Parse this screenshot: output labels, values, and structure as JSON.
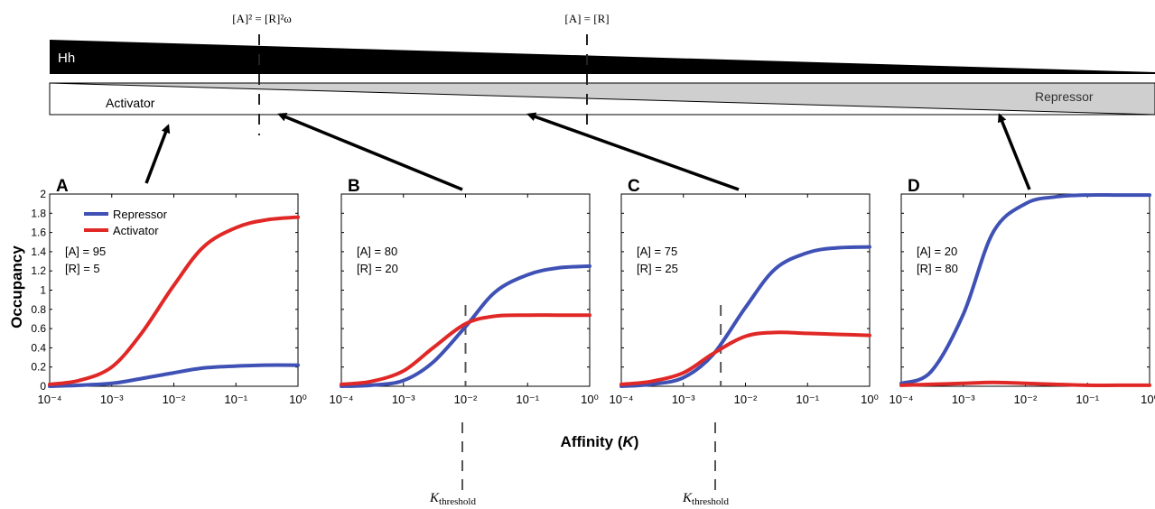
{
  "figure": {
    "top_labels": {
      "eq_left": "[A]² = [R]²ω",
      "eq_right": "[A] = [R]"
    },
    "gradients": {
      "hh_label": "Hh",
      "activator_label": "Activator",
      "repressor_label": "Repressor"
    },
    "y_axis_label": "Occupancy",
    "x_axis_label_text": "Affinity (",
    "x_axis_label_var": "K",
    "x_axis_label_close": ")",
    "threshold": {
      "main": "K",
      "sub": "threshold"
    },
    "legend": {
      "repressor": "Repressor",
      "activator": "Activator"
    },
    "colors": {
      "repressor": "#3f51b5",
      "activator": "#e02826",
      "hh_fill": "#000000",
      "repressor_gradient_fill": "#cfcfcf"
    }
  },
  "chart_data": [
    {
      "type": "line",
      "panel": "A",
      "x_scale": "log",
      "xlim": [
        0.0001,
        1
      ],
      "ylim": [
        0,
        2
      ],
      "x_ticks": [
        "10⁻⁴",
        "10⁻³",
        "10⁻²",
        "10⁻¹",
        "10⁰"
      ],
      "y_ticks": [
        "0",
        "0.2",
        "0.4",
        "0.6",
        "0.8",
        "1",
        "1.2",
        "1.4",
        "1.6",
        "1.8",
        "2"
      ],
      "annotation": [
        "[A] = 95",
        "[R] = 5"
      ],
      "x": [
        0.0001,
        0.0003,
        0.001,
        0.003,
        0.01,
        0.03,
        0.1,
        0.3,
        1
      ],
      "series": [
        {
          "name": "Repressor",
          "values": [
            0.0,
            0.01,
            0.03,
            0.08,
            0.14,
            0.19,
            0.21,
            0.22,
            0.22
          ]
        },
        {
          "name": "Activator",
          "values": [
            0.02,
            0.06,
            0.2,
            0.55,
            1.05,
            1.45,
            1.65,
            1.73,
            1.76
          ]
        }
      ]
    },
    {
      "type": "line",
      "panel": "B",
      "x_scale": "log",
      "xlim": [
        0.0001,
        1
      ],
      "ylim": [
        0,
        2
      ],
      "x_ticks": [
        "10⁻⁴",
        "10⁻³",
        "10⁻²",
        "10⁻¹",
        "10⁰"
      ],
      "annotation": [
        "[A] = 80",
        "[R] = 20"
      ],
      "threshold_x": 0.01,
      "x": [
        0.0001,
        0.0003,
        0.001,
        0.003,
        0.01,
        0.03,
        0.1,
        0.3,
        1
      ],
      "series": [
        {
          "name": "Repressor",
          "values": [
            0.0,
            0.01,
            0.06,
            0.25,
            0.62,
            0.98,
            1.16,
            1.23,
            1.25
          ]
        },
        {
          "name": "Activator",
          "values": [
            0.02,
            0.05,
            0.16,
            0.4,
            0.65,
            0.73,
            0.74,
            0.74,
            0.74
          ]
        }
      ]
    },
    {
      "type": "line",
      "panel": "C",
      "x_scale": "log",
      "xlim": [
        0.0001,
        1
      ],
      "ylim": [
        0,
        2
      ],
      "x_ticks": [
        "10⁻⁴",
        "10⁻³",
        "10⁻²",
        "10⁻¹",
        "10⁰"
      ],
      "annotation": [
        "[A] = 75",
        "[R] = 25"
      ],
      "threshold_x": 0.004,
      "x": [
        0.0001,
        0.0003,
        0.001,
        0.003,
        0.01,
        0.03,
        0.1,
        0.3,
        1
      ],
      "series": [
        {
          "name": "Repressor",
          "values": [
            0.0,
            0.02,
            0.09,
            0.33,
            0.82,
            1.22,
            1.39,
            1.44,
            1.45
          ]
        },
        {
          "name": "Activator",
          "values": [
            0.02,
            0.05,
            0.14,
            0.34,
            0.52,
            0.56,
            0.55,
            0.54,
            0.53
          ]
        }
      ]
    },
    {
      "type": "line",
      "panel": "D",
      "x_scale": "log",
      "xlim": [
        0.0001,
        1
      ],
      "ylim": [
        0,
        2
      ],
      "x_ticks": [
        "10⁻⁴",
        "10⁻³",
        "10⁻²",
        "10⁻¹",
        "10⁰"
      ],
      "annotation": [
        "[A] = 20",
        "[R] = 80"
      ],
      "x": [
        0.0001,
        0.0003,
        0.001,
        0.003,
        0.01,
        0.03,
        0.1,
        0.3,
        1
      ],
      "series": [
        {
          "name": "Repressor",
          "values": [
            0.03,
            0.15,
            0.75,
            1.6,
            1.9,
            1.97,
            1.99,
            1.99,
            1.99
          ]
        },
        {
          "name": "Activator",
          "values": [
            0.01,
            0.02,
            0.03,
            0.04,
            0.03,
            0.02,
            0.01,
            0.01,
            0.01
          ]
        }
      ]
    }
  ]
}
